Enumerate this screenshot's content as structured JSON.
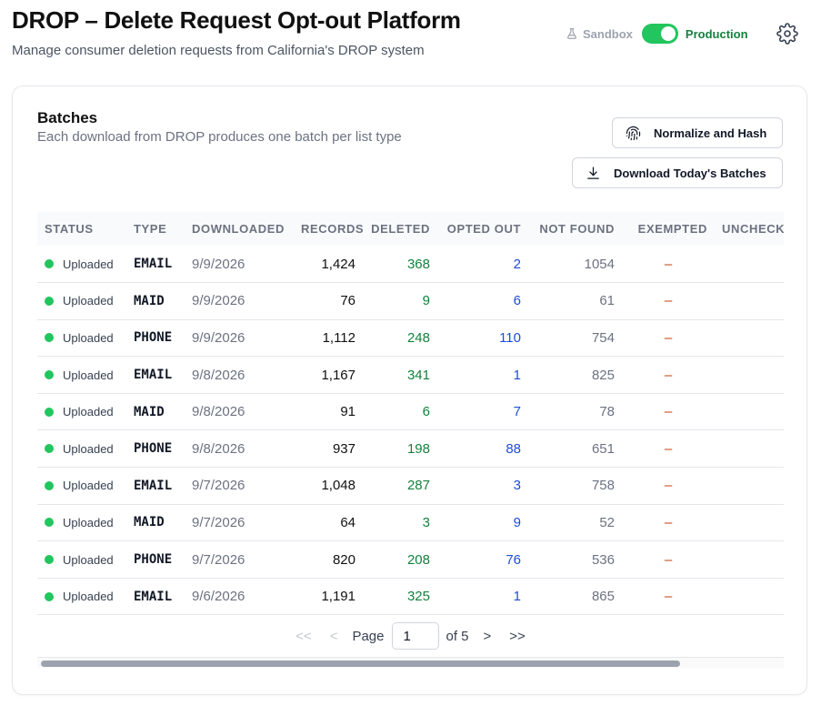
{
  "header": {
    "title": "DROP – Delete Request Opt-out Platform",
    "subtitle": "Manage consumer deletion requests from California's DROP system"
  },
  "environment": {
    "sandbox_label": "Sandbox",
    "production_label": "Production",
    "selected": "Production",
    "toggle_color": "#22c55e"
  },
  "batches": {
    "title": "Batches",
    "description": "Each download from DROP produces one batch per list type",
    "normalize_button": "Normalize and Hash",
    "download_button": "Download Today's Batches",
    "columns": [
      "STATUS",
      "TYPE",
      "DOWNLOADED",
      "RECORDS",
      "DELETED",
      "OPTED OUT",
      "NOT FOUND",
      "EXEMPTED",
      "UNCHECKED"
    ],
    "rows": [
      {
        "status": "Uploaded",
        "type": "EMAIL",
        "downloaded": "9/9/2026",
        "records": "1,424",
        "deleted": "368",
        "opted_out": "2",
        "not_found": "1054",
        "exempted": "–"
      },
      {
        "status": "Uploaded",
        "type": "MAID",
        "downloaded": "9/9/2026",
        "records": "76",
        "deleted": "9",
        "opted_out": "6",
        "not_found": "61",
        "exempted": "–"
      },
      {
        "status": "Uploaded",
        "type": "PHONE",
        "downloaded": "9/9/2026",
        "records": "1,112",
        "deleted": "248",
        "opted_out": "110",
        "not_found": "754",
        "exempted": "–"
      },
      {
        "status": "Uploaded",
        "type": "EMAIL",
        "downloaded": "9/8/2026",
        "records": "1,167",
        "deleted": "341",
        "opted_out": "1",
        "not_found": "825",
        "exempted": "–"
      },
      {
        "status": "Uploaded",
        "type": "MAID",
        "downloaded": "9/8/2026",
        "records": "91",
        "deleted": "6",
        "opted_out": "7",
        "not_found": "78",
        "exempted": "–"
      },
      {
        "status": "Uploaded",
        "type": "PHONE",
        "downloaded": "9/8/2026",
        "records": "937",
        "deleted": "198",
        "opted_out": "88",
        "not_found": "651",
        "exempted": "–"
      },
      {
        "status": "Uploaded",
        "type": "EMAIL",
        "downloaded": "9/7/2026",
        "records": "1,048",
        "deleted": "287",
        "opted_out": "3",
        "not_found": "758",
        "exempted": "–"
      },
      {
        "status": "Uploaded",
        "type": "MAID",
        "downloaded": "9/7/2026",
        "records": "64",
        "deleted": "3",
        "opted_out": "9",
        "not_found": "52",
        "exempted": "–"
      },
      {
        "status": "Uploaded",
        "type": "PHONE",
        "downloaded": "9/7/2026",
        "records": "820",
        "deleted": "208",
        "opted_out": "76",
        "not_found": "536",
        "exempted": "–"
      },
      {
        "status": "Uploaded",
        "type": "EMAIL",
        "downloaded": "9/6/2026",
        "records": "1,191",
        "deleted": "325",
        "opted_out": "1",
        "not_found": "865",
        "exempted": "–"
      }
    ],
    "colors": {
      "status_dot": "#22c55e",
      "deleted": "#15803d",
      "opted_out": "#1d4ed8",
      "exempted": "#c2410c"
    }
  },
  "pagination": {
    "first": "<<",
    "prev": "<",
    "page_label": "Page",
    "current_page": "1",
    "of_label": "of 5",
    "next": ">",
    "last": ">>"
  },
  "icons": {
    "sandbox": "flask-icon",
    "settings": "gear-icon",
    "normalize": "fingerprint-icon",
    "download": "download-icon"
  }
}
